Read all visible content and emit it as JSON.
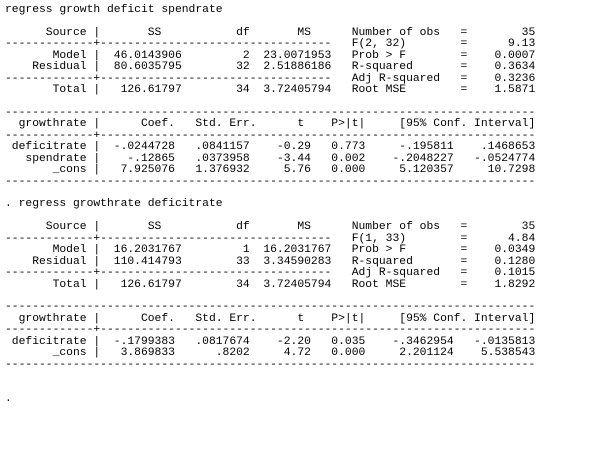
{
  "lines": [
    "regress growth deficit spendrate",
    "",
    "      Source |       SS           df       MS      Number of obs   =        35",
    "-------------+----------------------------------   F(2, 32)        =      9.13",
    "       Model |  46.0143906         2  23.0071953   Prob > F        =    0.0007",
    "    Residual |  80.6035795        32  2.51886186   R-squared       =    0.3634",
    "-------------+----------------------------------   Adj R-squared   =    0.3236",
    "       Total |   126.61797        34  3.72405794   Root MSE        =    1.5871",
    "",
    "------------------------------------------------------------------------------",
    "  growthrate |      Coef.   Std. Err.      t    P>|t|     [95% Conf. Interval]",
    "-------------+----------------------------------------------------------------",
    " deficitrate |  -.0244728   .0841157    -0.29   0.773     -.195811    .1468653",
    "   spendrate |    -.12865   .0373958    -3.44   0.002    -.2048227   -.0524774",
    "       _cons |   7.925076   1.376932     5.76   0.000     5.120357     10.7298",
    "------------------------------------------------------------------------------",
    "",
    ". regress growthrate deficitrate",
    "",
    "      Source |       SS           df       MS      Number of obs   =        35",
    "-------------+----------------------------------   F(1, 33)        =      4.84",
    "       Model |  16.2031767         1  16.2031767   Prob > F        =    0.0349",
    "    Residual |  110.414793        33  3.34590283   R-squared       =    0.1280",
    "-------------+----------------------------------   Adj R-squared   =    0.1015",
    "       Total |   126.61797        34  3.72405794   Root MSE        =    1.8292",
    "",
    "------------------------------------------------------------------------------",
    "  growthrate |      Coef.   Std. Err.      t    P>|t|     [95% Conf. Interval]",
    "-------------+----------------------------------------------------------------",
    " deficitrate |  -.1799383   .0817674    -2.20   0.035    -.3462954   -.0135813",
    "       _cons |   3.869833      .8202     4.72   0.000     2.201124    5.538543",
    "------------------------------------------------------------------------------",
    "",
    "",
    "."
  ]
}
